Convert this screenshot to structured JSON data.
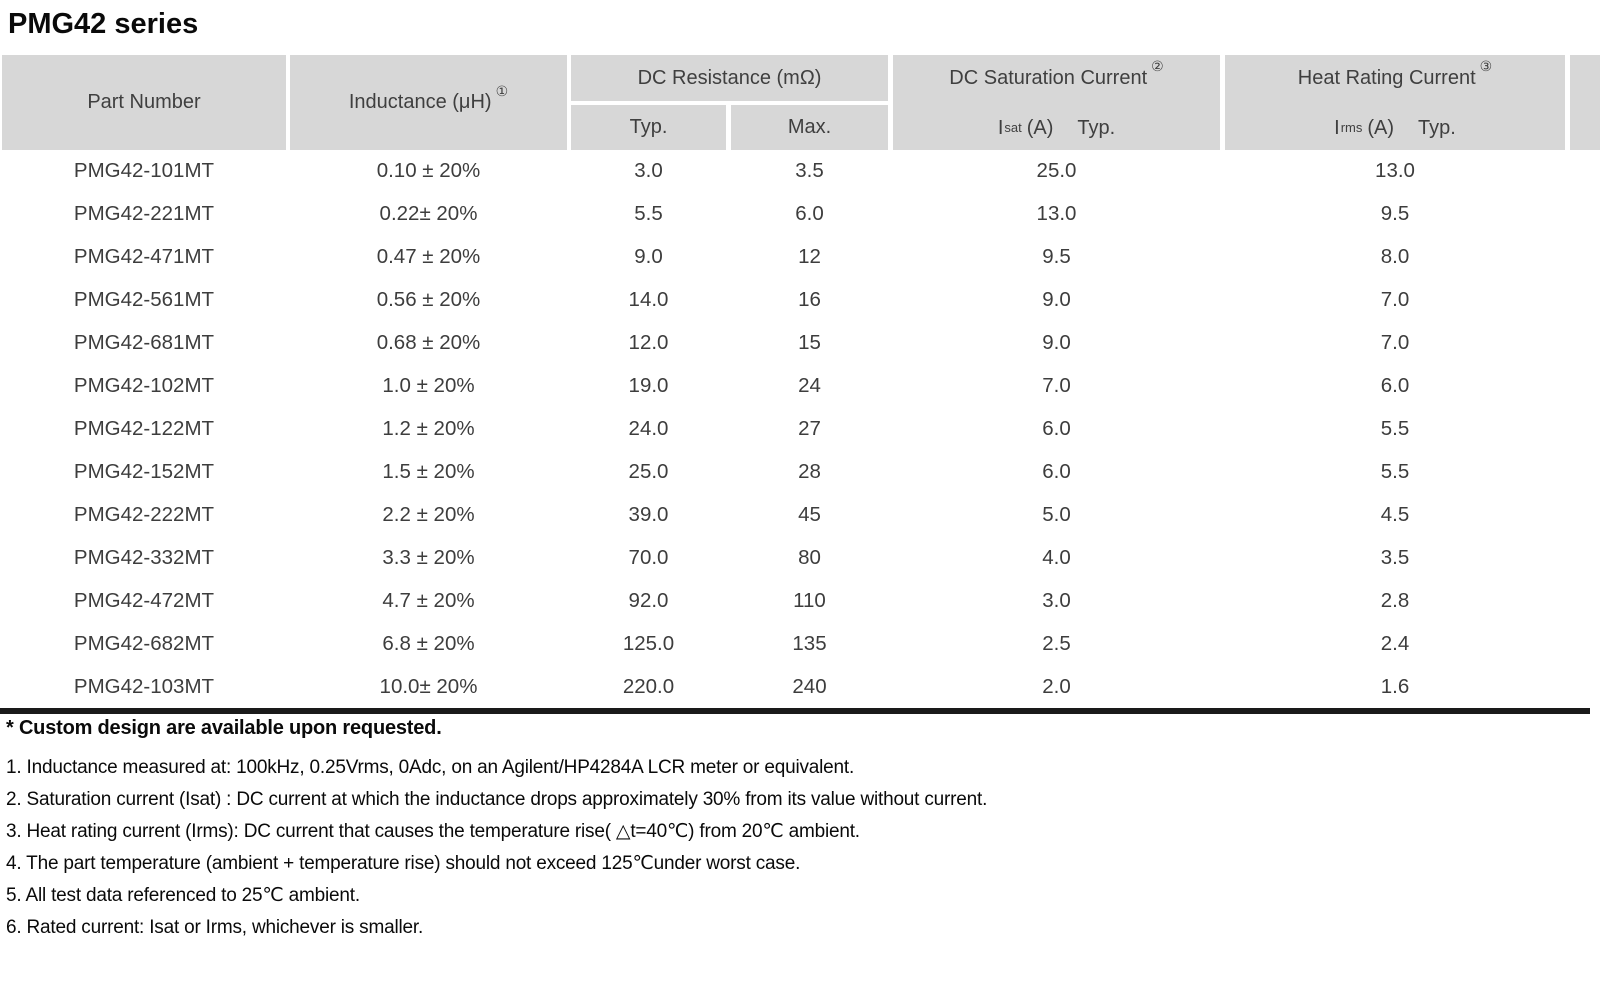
{
  "page_title": "PMG42 series",
  "colors": {
    "header_bg": "#d7d7d7",
    "table_text": "#3d3d3d",
    "divider": "#1a1a1a",
    "text": "#0a0a0a"
  },
  "table": {
    "header": {
      "part_number": "Part Number",
      "inductance_label": "Inductance (μH)",
      "inductance_ref": "①",
      "dc_resistance_label": "DC Resistance (mΩ)",
      "typ_label": "Typ.",
      "max_label": "Max.",
      "saturation_label": "DC Saturation Current",
      "saturation_ref": "②",
      "saturation_symbol": "I",
      "saturation_symbol_sub": "sat",
      "saturation_unit": "(A)",
      "saturation_typ": "Typ.",
      "heat_label": "Heat Rating Current",
      "heat_ref": "③",
      "heat_symbol": "I",
      "heat_symbol_sub": "rms",
      "heat_unit": "(A)",
      "heat_typ": "Typ."
    },
    "rows": [
      {
        "part_number": "PMG42-101MT",
        "inductance": "0.10 ± 20%",
        "dcr_typ": "3.0",
        "dcr_max": "3.5",
        "isat_typ": "25.0",
        "irms_typ": "13.0"
      },
      {
        "part_number": "PMG42-221MT",
        "inductance": "0.22± 20%",
        "dcr_typ": "5.5",
        "dcr_max": "6.0",
        "isat_typ": "13.0",
        "irms_typ": "9.5"
      },
      {
        "part_number": "PMG42-471MT",
        "inductance": "0.47 ± 20%",
        "dcr_typ": "9.0",
        "dcr_max": "12",
        "isat_typ": "9.5",
        "irms_typ": "8.0"
      },
      {
        "part_number": "PMG42-561MT",
        "inductance": "0.56 ± 20%",
        "dcr_typ": "14.0",
        "dcr_max": "16",
        "isat_typ": "9.0",
        "irms_typ": "7.0"
      },
      {
        "part_number": "PMG42-681MT",
        "inductance": "0.68 ± 20%",
        "dcr_typ": "12.0",
        "dcr_max": "15",
        "isat_typ": "9.0",
        "irms_typ": "7.0"
      },
      {
        "part_number": "PMG42-102MT",
        "inductance": "1.0 ± 20%",
        "dcr_typ": "19.0",
        "dcr_max": "24",
        "isat_typ": "7.0",
        "irms_typ": "6.0"
      },
      {
        "part_number": "PMG42-122MT",
        "inductance": "1.2 ± 20%",
        "dcr_typ": "24.0",
        "dcr_max": "27",
        "isat_typ": "6.0",
        "irms_typ": "5.5"
      },
      {
        "part_number": "PMG42-152MT",
        "inductance": "1.5 ± 20%",
        "dcr_typ": "25.0",
        "dcr_max": "28",
        "isat_typ": "6.0",
        "irms_typ": "5.5"
      },
      {
        "part_number": "PMG42-222MT",
        "inductance": "2.2 ± 20%",
        "dcr_typ": "39.0",
        "dcr_max": "45",
        "isat_typ": "5.0",
        "irms_typ": "4.5"
      },
      {
        "part_number": "PMG42-332MT",
        "inductance": "3.3 ± 20%",
        "dcr_typ": "70.0",
        "dcr_max": "80",
        "isat_typ": "4.0",
        "irms_typ": "3.5"
      },
      {
        "part_number": "PMG42-472MT",
        "inductance": "4.7 ± 20%",
        "dcr_typ": "92.0",
        "dcr_max": "110",
        "isat_typ": "3.0",
        "irms_typ": "2.8"
      },
      {
        "part_number": "PMG42-682MT",
        "inductance": "6.8 ± 20%",
        "dcr_typ": "125.0",
        "dcr_max": "135",
        "isat_typ": "2.5",
        "irms_typ": "2.4"
      },
      {
        "part_number": "PMG42-103MT",
        "inductance": "10.0± 20%",
        "dcr_typ": "220.0",
        "dcr_max": "240",
        "isat_typ": "2.0",
        "irms_typ": "1.6"
      }
    ]
  },
  "footnotes": {
    "custom_note": "* Custom design are available upon requested.",
    "items": [
      "1. Inductance measured at: 100kHz, 0.25Vrms, 0Adc, on an Agilent/HP4284A LCR meter or equivalent.",
      "2. Saturation current (Isat) : DC current at which the inductance drops approximately 30% from its value without current.",
      "3. Heat rating current (Irms): DC current that causes the temperature rise( △t=40℃) from 20℃ ambient.",
      "4. The part temperature (ambient + temperature rise) should not exceed 125℃under worst case.",
      "5. All test data referenced to 25℃ ambient.",
      "6. Rated current: Isat or Irms, whichever is smaller."
    ]
  }
}
